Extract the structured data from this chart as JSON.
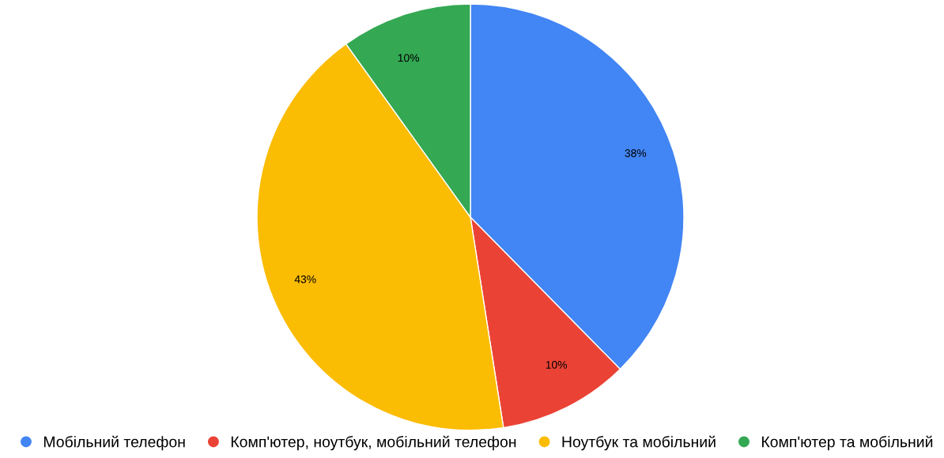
{
  "chart_data": {
    "type": "pie",
    "categories": [
      "Мобільний телефон",
      "Комп'ютер, ноутбук, мобільний телефон",
      "Ноутбук та мобільний",
      "Комп'ютер та мобільний"
    ],
    "values": [
      38,
      10,
      43,
      10
    ],
    "colors": [
      "#4285f4",
      "#ea4335",
      "#fbbc04",
      "#34a853"
    ],
    "value_labels": [
      "38%",
      "10%",
      "43%",
      "10%"
    ],
    "legend": "bottom"
  }
}
